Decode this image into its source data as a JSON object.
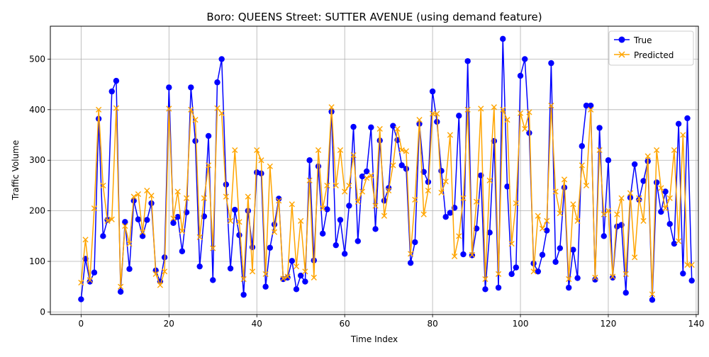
{
  "chart_data": {
    "type": "line",
    "title": "Boro: QUEENS Street: SUTTER AVENUE (using demand feature)",
    "xlabel": "Time Index",
    "ylabel": "Traffic Volume",
    "xlim": [
      -7,
      140.5
    ],
    "ylim": [
      -5,
      565
    ],
    "x_ticks": [
      0,
      20,
      40,
      60,
      80,
      100,
      120,
      140
    ],
    "y_ticks": [
      0,
      100,
      200,
      300,
      400,
      500
    ],
    "grid": true,
    "legend_position": "top-right",
    "series": [
      {
        "name": "True",
        "color": "#0000ff",
        "marker": "circle",
        "values": [
          25,
          105,
          60,
          78,
          382,
          150,
          182,
          436,
          457,
          40,
          178,
          85,
          220,
          183,
          150,
          182,
          215,
          82,
          60,
          108,
          444,
          176,
          188,
          120,
          197,
          444,
          338,
          90,
          189,
          348,
          63,
          454,
          500,
          252,
          86,
          202,
          152,
          34,
          200,
          128,
          276,
          274,
          50,
          127,
          173,
          224,
          65,
          68,
          101,
          45,
          72,
          60,
          300,
          102,
          288,
          155,
          203,
          396,
          132,
          182,
          115,
          210,
          366,
          140,
          268,
          278,
          365,
          164,
          339,
          220,
          245,
          368,
          340,
          290,
          283,
          97,
          138,
          372,
          277,
          257,
          436,
          376,
          279,
          188,
          196,
          206,
          388,
          114,
          496,
          112,
          165,
          270,
          45,
          157,
          338,
          48,
          540,
          248,
          75,
          88,
          467,
          500,
          354,
          96,
          80,
          113,
          161,
          492,
          99,
          126,
          246,
          48,
          123,
          67,
          328,
          408,
          408,
          64,
          364,
          150,
          300,
          68,
          169,
          172,
          38,
          226,
          292,
          222,
          259,
          298,
          24,
          256,
          198,
          238,
          174,
          135,
          372,
          76,
          383,
          62
        ]
      },
      {
        "name": "Predicted",
        "color": "#ffa500",
        "marker": "x",
        "values": [
          58,
          143,
          63,
          205,
          400,
          250,
          180,
          183,
          403,
          50,
          170,
          135,
          228,
          233,
          158,
          240,
          230,
          75,
          53,
          80,
          402,
          185,
          238,
          160,
          225,
          400,
          380,
          148,
          225,
          290,
          126,
          403,
          393,
          228,
          180,
          320,
          178,
          65,
          228,
          80,
          320,
          300,
          75,
          288,
          158,
          220,
          66,
          70,
          213,
          90,
          180,
          80,
          260,
          68,
          320,
          205,
          250,
          405,
          250,
          320,
          238,
          250,
          310,
          218,
          238,
          265,
          270,
          210,
          362,
          190,
          240,
          290,
          362,
          320,
          318,
          115,
          222,
          380,
          193,
          240,
          392,
          392,
          236,
          258,
          350,
          110,
          150,
          225,
          400,
          113,
          218,
          402,
          65,
          260,
          405,
          75,
          400,
          380,
          135,
          215,
          393,
          362,
          395,
          80,
          190,
          165,
          180,
          408,
          238,
          195,
          262,
          65,
          213,
          180,
          290,
          250,
          400,
          68,
          320,
          193,
          200,
          70,
          193,
          225,
          75,
          235,
          108,
          225,
          180,
          308,
          35,
          320,
          245,
          205,
          225,
          320,
          140,
          350,
          93,
          93
        ]
      }
    ]
  }
}
